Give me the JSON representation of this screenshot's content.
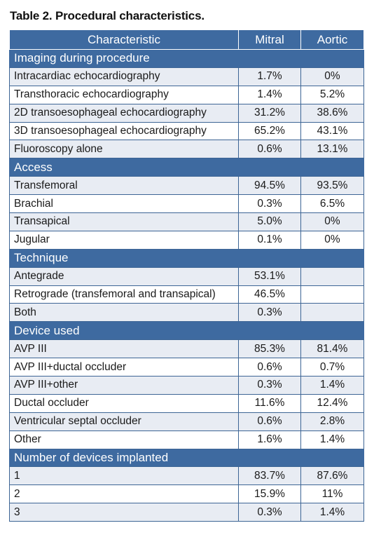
{
  "caption": "Table 2. Procedural characteristics.",
  "header": {
    "characteristic": "Characteristic",
    "mitral": "Mitral",
    "aortic": "Aortic"
  },
  "sections": [
    {
      "title": "Imaging during procedure",
      "rows": [
        {
          "label": "Intracardiac echocardiography",
          "mitral": "1.7%",
          "aortic": "0%"
        },
        {
          "label": "Transthoracic echocardiography",
          "mitral": "1.4%",
          "aortic": "5.2%"
        },
        {
          "label": "2D transoesophageal echocardiography",
          "mitral": "31.2%",
          "aortic": "38.6%"
        },
        {
          "label": "3D transoesophageal echocardiography",
          "mitral": "65.2%",
          "aortic": "43.1%"
        },
        {
          "label": "Fluoroscopy alone",
          "mitral": "0.6%",
          "aortic": "13.1%"
        }
      ]
    },
    {
      "title": "Access",
      "rows": [
        {
          "label": "Transfemoral",
          "mitral": "94.5%",
          "aortic": "93.5%"
        },
        {
          "label": "Brachial",
          "mitral": "0.3%",
          "aortic": "6.5%"
        },
        {
          "label": "Transapical",
          "mitral": "5.0%",
          "aortic": "0%"
        },
        {
          "label": "Jugular",
          "mitral": "0.1%",
          "aortic": "0%"
        }
      ]
    },
    {
      "title": "Technique",
      "rows": [
        {
          "label": "Antegrade",
          "mitral": "53.1%",
          "aortic": ""
        },
        {
          "label": "Retrograde (transfemoral and transapical)",
          "mitral": "46.5%",
          "aortic": ""
        },
        {
          "label": "Both",
          "mitral": "0.3%",
          "aortic": ""
        }
      ]
    },
    {
      "title": "Device used",
      "rows": [
        {
          "label": "AVP III",
          "mitral": "85.3%",
          "aortic": "81.4%"
        },
        {
          "label": "AVP III+ductal occluder",
          "mitral": "0.6%",
          "aortic": "0.7%"
        },
        {
          "label": "AVP III+other",
          "mitral": "0.3%",
          "aortic": "1.4%"
        },
        {
          "label": "Ductal occluder",
          "mitral": "11.6%",
          "aortic": "12.4%"
        },
        {
          "label": "Ventricular septal occluder",
          "mitral": "0.6%",
          "aortic": "2.8%"
        },
        {
          "label": "Other",
          "mitral": "1.6%",
          "aortic": "1.4%"
        }
      ]
    },
    {
      "title": "Number of devices implanted",
      "rows": [
        {
          "label": "1",
          "mitral": "83.7%",
          "aortic": "87.6%"
        },
        {
          "label": "2",
          "mitral": "15.9%",
          "aortic": "11%"
        },
        {
          "label": "3",
          "mitral": "0.3%",
          "aortic": "1.4%"
        }
      ]
    }
  ],
  "colors": {
    "header_bg": "#3e6aa0",
    "stripe_bg": "#e8ecf3",
    "border": "#3d6595"
  }
}
